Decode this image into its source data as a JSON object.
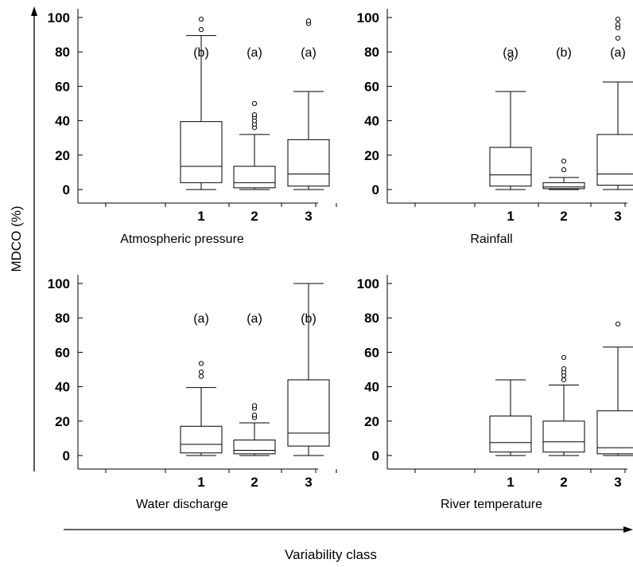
{
  "figure": {
    "ylabel": "MDCO (%)",
    "xlabel": "Variability class"
  },
  "chart_data": [
    {
      "type": "box",
      "title": "Atmospheric pressure",
      "categories": [
        "1",
        "2",
        "3"
      ],
      "ylim": [
        -8,
        105
      ],
      "yticks": [
        "0",
        "20",
        "40",
        "60",
        "80",
        "100"
      ],
      "grid": false,
      "boxes": [
        {
          "whisker_low": 0,
          "q1": 4,
          "median": 13.5,
          "q3": 39.5,
          "whisker_high": 89.5,
          "outliers": [
            93,
            99
          ],
          "letter": "(b)"
        },
        {
          "whisker_low": 0,
          "q1": 1,
          "median": 4,
          "q3": 13.5,
          "whisker_high": 32,
          "outliers": [
            36,
            38,
            40,
            42,
            43.5,
            50
          ],
          "letter": "(a)"
        },
        {
          "whisker_low": 0,
          "q1": 2,
          "median": 9,
          "q3": 29,
          "whisker_high": 57,
          "outliers": [
            96.5,
            98
          ],
          "letter": "(a)"
        }
      ]
    },
    {
      "type": "box",
      "title": "Rainfall",
      "categories": [
        "1",
        "2",
        "3"
      ],
      "ylim": [
        -8,
        105
      ],
      "yticks": [
        "0",
        "20",
        "40",
        "60",
        "80",
        "100"
      ],
      "grid": false,
      "boxes": [
        {
          "whisker_low": 0,
          "q1": 2,
          "median": 8.5,
          "q3": 24.5,
          "whisker_high": 57,
          "outliers": [
            76
          ],
          "letter": "(a)"
        },
        {
          "whisker_low": 0,
          "q1": 0.5,
          "median": 1.5,
          "q3": 4,
          "whisker_high": 7,
          "outliers": [
            11.5,
            16.5
          ],
          "letter": "(b)"
        },
        {
          "whisker_low": 0,
          "q1": 2.5,
          "median": 9,
          "q3": 32,
          "whisker_high": 62.5,
          "outliers": [
            88,
            94,
            96,
            99
          ],
          "letter": "(a)"
        }
      ]
    },
    {
      "type": "box",
      "title": "Water discharge",
      "categories": [
        "1",
        "2",
        "3"
      ],
      "ylim": [
        -8,
        105
      ],
      "yticks": [
        "0",
        "20",
        "40",
        "60",
        "80",
        "100"
      ],
      "grid": false,
      "boxes": [
        {
          "whisker_low": 0,
          "q1": 1.5,
          "median": 6.5,
          "q3": 17,
          "whisker_high": 39.5,
          "outliers": [
            46,
            48.5,
            53.5
          ],
          "letter": "(a)"
        },
        {
          "whisker_low": 0,
          "q1": 1,
          "median": 3,
          "q3": 9,
          "whisker_high": 19,
          "outliers": [
            22,
            23.5,
            27.5,
            29
          ],
          "letter": "(a)"
        },
        {
          "whisker_low": 0,
          "q1": 5.5,
          "median": 13,
          "q3": 44,
          "whisker_high": 100,
          "outliers": [],
          "letter": "(b)"
        }
      ]
    },
    {
      "type": "box",
      "title": "River temperature",
      "categories": [
        "1",
        "2",
        "3"
      ],
      "ylim": [
        -8,
        105
      ],
      "yticks": [
        "0",
        "20",
        "40",
        "60",
        "80",
        "100"
      ],
      "grid": false,
      "boxes": [
        {
          "whisker_low": 0,
          "q1": 2,
          "median": 7.5,
          "q3": 23,
          "whisker_high": 44,
          "outliers": []
        },
        {
          "whisker_low": 0,
          "q1": 2,
          "median": 8,
          "q3": 20,
          "whisker_high": 41,
          "outliers": [
            44,
            46.5,
            48.5,
            50.5,
            57
          ],
          "letter": ""
        },
        {
          "whisker_low": 0,
          "q1": 1,
          "median": 4.5,
          "q3": 26,
          "whisker_high": 63,
          "outliers": [
            76.5
          ]
        }
      ]
    }
  ]
}
